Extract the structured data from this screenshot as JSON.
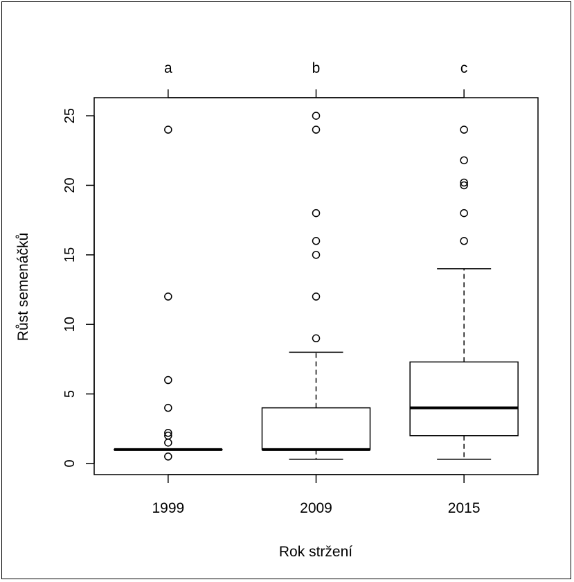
{
  "chart_data": {
    "type": "boxplot",
    "title": "",
    "xlabel": "Rok stržení",
    "ylabel": "Růst semenáčků",
    "categories": [
      "1999",
      "2009",
      "2015"
    ],
    "group_letters": [
      "a",
      "b",
      "c"
    ],
    "yticks": [
      "0",
      "5",
      "10",
      "15",
      "20",
      "25"
    ],
    "ylim": [
      -0.8,
      26.3
    ],
    "grid": false,
    "boxes": [
      {
        "category": "1999",
        "letter": "a",
        "whisker_low": 1,
        "q1": 1,
        "median": 1,
        "q3": 1,
        "whisker_high": 1,
        "outliers": [
          0.5,
          1.5,
          2.0,
          2.2,
          4,
          6,
          12,
          24
        ]
      },
      {
        "category": "2009",
        "letter": "b",
        "whisker_low": 0.3,
        "q1": 1,
        "median": 1,
        "q3": 4,
        "whisker_high": 8,
        "outliers": [
          9,
          12,
          15,
          16,
          18,
          24,
          25
        ]
      },
      {
        "category": "2015",
        "letter": "c",
        "whisker_low": 0.3,
        "q1": 2,
        "median": 4,
        "q3": 7.3,
        "whisker_high": 14,
        "outliers": [
          16,
          18,
          20,
          20.2,
          21.8,
          24
        ]
      }
    ]
  }
}
